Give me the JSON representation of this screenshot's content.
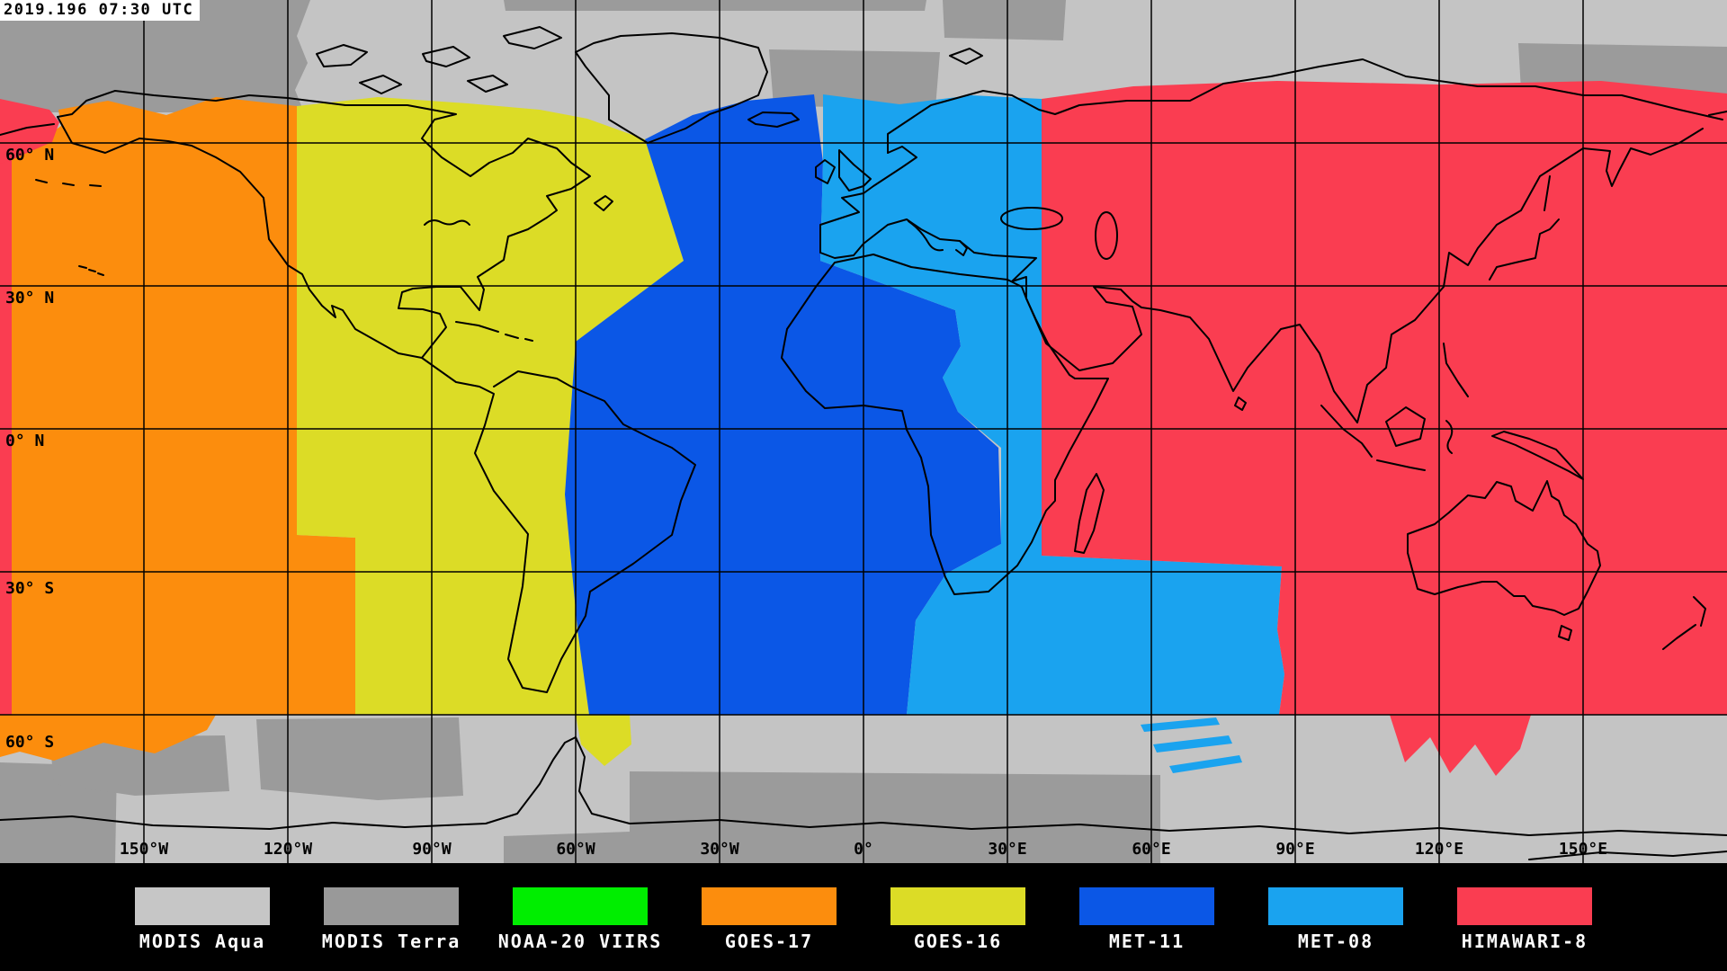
{
  "timestamp": "2019.196 07:30 UTC",
  "map": {
    "lat_labels": [
      "60° N",
      "30° N",
      "0° N",
      "30° S",
      "60° S"
    ],
    "lon_labels": [
      "150°W",
      "120°W",
      "90°W",
      "60°W",
      "30°W",
      "0°",
      "30°E",
      "60°E",
      "90°E",
      "120°E",
      "150°E"
    ],
    "colors": {
      "aqua_gray": "#c4c4c4",
      "terra_gray": "#9b9b9b",
      "gridline": "#000000",
      "coastline": "#000000"
    }
  },
  "legend": {
    "items": [
      {
        "label": "MODIS Aqua",
        "color": "#c6c6c6"
      },
      {
        "label": "MODIS Terra",
        "color": "#999999"
      },
      {
        "label": "NOAA-20 VIIRS",
        "color": "#00ee00"
      },
      {
        "label": "GOES-17",
        "color": "#fc8d0d"
      },
      {
        "label": "GOES-16",
        "color": "#dcdc26"
      },
      {
        "label": "MET-11",
        "color": "#0b57e6"
      },
      {
        "label": "MET-08",
        "color": "#1aa3ef"
      },
      {
        "label": "HIMAWARI-8",
        "color": "#fa3d51"
      }
    ]
  },
  "coverage_bands": [
    {
      "satellite": "GOES-17",
      "approx_span": "180W to 105W, 65N-60S"
    },
    {
      "satellite": "GOES-16",
      "approx_span": "105W to 45W, 65N-60S"
    },
    {
      "satellite": "MET-11",
      "approx_span": "45W to 10E (to 30E near Africa), 70N-60S"
    },
    {
      "satellite": "MET-08",
      "approx_span": "10E to 40E (to 90E in far south), 70N-60S"
    },
    {
      "satellite": "HIMAWARI-8",
      "approx_span": "40E to 180E plus far west edge, 72N-60S"
    },
    {
      "satellite": "MODIS Aqua / MODIS Terra",
      "approx_span": "polar regions north of ~68N and south of 60S"
    }
  ]
}
